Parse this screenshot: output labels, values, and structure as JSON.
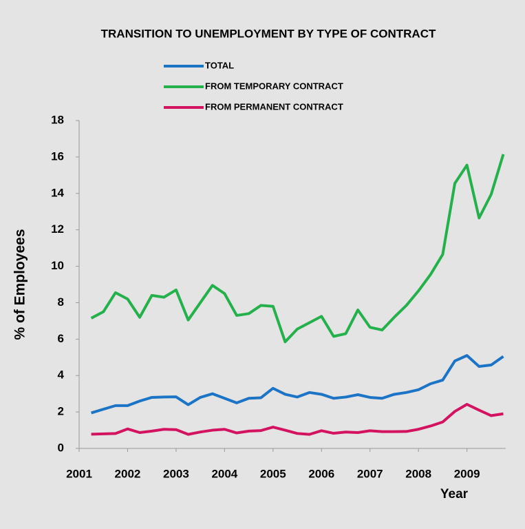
{
  "chart_data": {
    "type": "line",
    "title": "TRANSITION TO UNEMPLOYMENT BY TYPE OF CONTRACT",
    "x_label": "Year",
    "y_label": "% of Employees",
    "x": [
      2001.25,
      2001.5,
      2001.75,
      2002,
      2002.25,
      2002.5,
      2002.75,
      2003,
      2003.25,
      2003.5,
      2003.75,
      2004,
      2004.25,
      2004.5,
      2004.75,
      2005,
      2005.25,
      2005.5,
      2005.75,
      2006,
      2006.25,
      2006.5,
      2006.75,
      2007,
      2007.25,
      2007.5,
      2007.75,
      2008,
      2008.25,
      2008.5,
      2008.75,
      2009,
      2009.25,
      2009.5,
      2009.75
    ],
    "series": [
      {
        "name": "TOTAL",
        "color": "#1b74c6",
        "values": [
          1.95,
          2.15,
          2.35,
          2.35,
          2.6,
          2.8,
          2.82,
          2.83,
          2.4,
          2.8,
          3.0,
          2.75,
          2.5,
          2.75,
          2.78,
          3.3,
          2.97,
          2.82,
          3.07,
          2.97,
          2.75,
          2.82,
          2.95,
          2.8,
          2.75,
          2.97,
          3.07,
          3.22,
          3.55,
          3.75,
          4.8,
          5.1,
          4.5,
          4.58,
          5.05
        ]
      },
      {
        "name": "FROM TEMPORARY CONTRACT",
        "color": "#24b14b",
        "values": [
          7.15,
          7.5,
          8.55,
          8.2,
          7.2,
          8.4,
          8.3,
          8.7,
          7.05,
          8.0,
          8.95,
          8.5,
          7.3,
          7.4,
          7.85,
          7.8,
          5.85,
          6.55,
          6.9,
          7.25,
          6.15,
          6.3,
          7.6,
          6.65,
          6.5,
          7.2,
          7.85,
          8.65,
          9.55,
          10.65,
          14.55,
          15.55,
          12.65,
          13.95,
          16.15
        ]
      },
      {
        "name": "FROM PERMANENT CONTRACT",
        "color": "#d3135f",
        "values": [
          0.78,
          0.8,
          0.82,
          1.07,
          0.87,
          0.95,
          1.05,
          1.03,
          0.77,
          0.9,
          1.0,
          1.05,
          0.85,
          0.95,
          0.98,
          1.17,
          1.0,
          0.82,
          0.77,
          0.97,
          0.83,
          0.9,
          0.87,
          0.97,
          0.92,
          0.92,
          0.93,
          1.05,
          1.23,
          1.45,
          2.03,
          2.42,
          2.1,
          1.8,
          1.9
        ]
      }
    ],
    "xlim": [
      2001,
      2009.8
    ],
    "xticks": [
      2001,
      2002,
      2003,
      2004,
      2005,
      2006,
      2007,
      2008,
      2009
    ],
    "ylim": [
      0,
      18
    ],
    "yticks": [
      0,
      2,
      4,
      6,
      8,
      10,
      12,
      14,
      16,
      18
    ]
  }
}
